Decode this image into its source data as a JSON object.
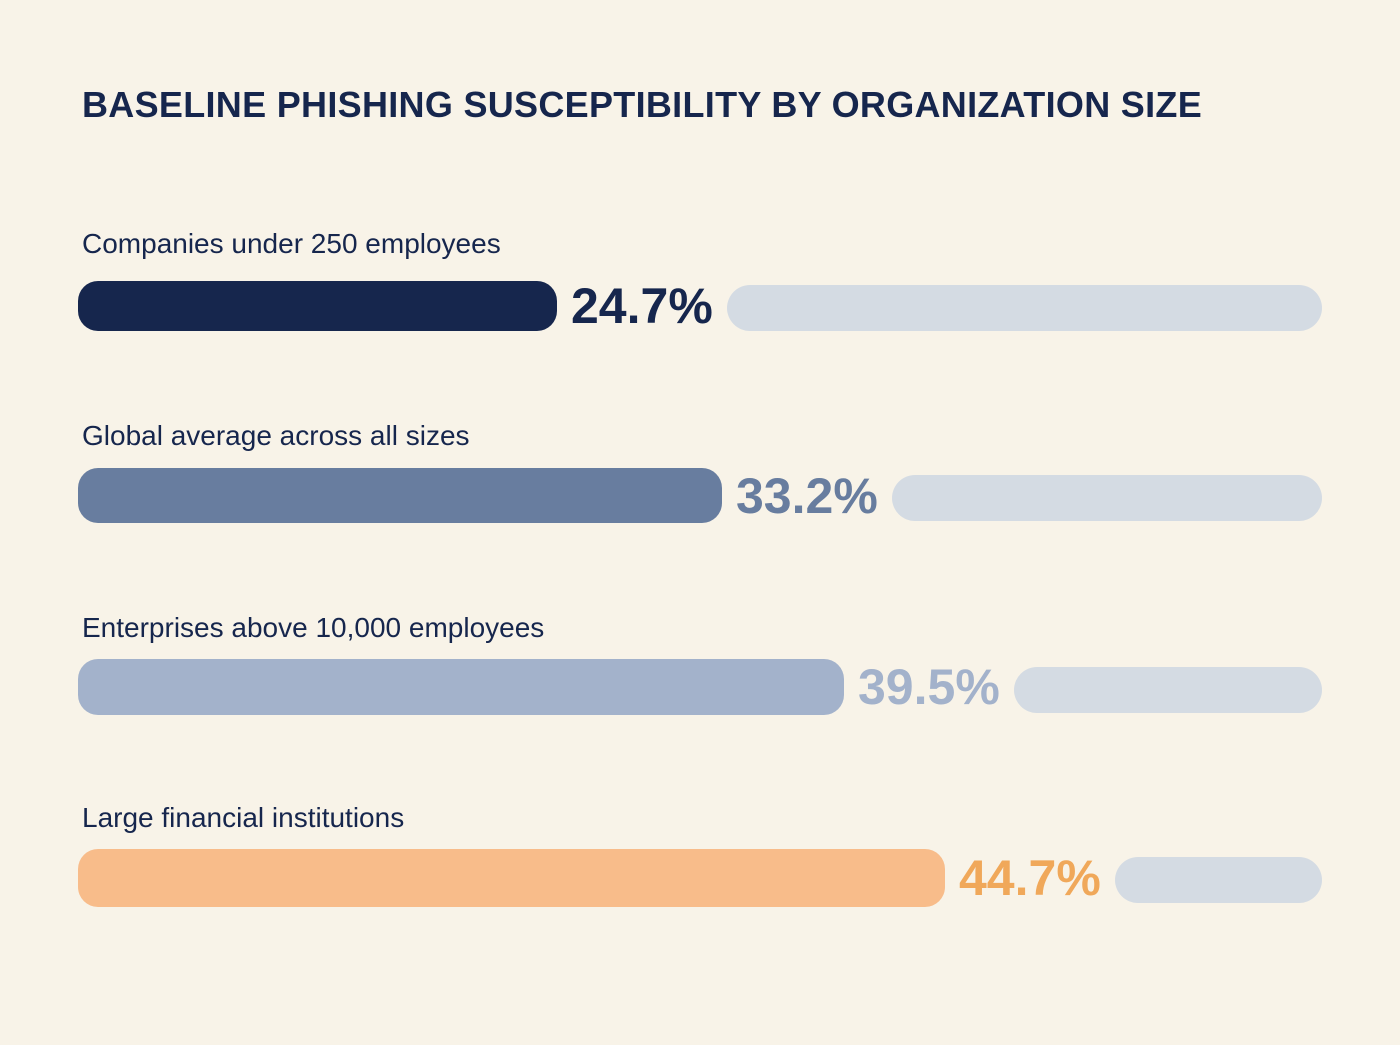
{
  "chart_data": {
    "type": "bar",
    "orientation": "horizontal",
    "title": "BASELINE PHISHING SUSCEPTIBILITY BY ORGANIZATION SIZE",
    "categories": [
      "Companies under 250 employees",
      "Global average across all sizes",
      "Enterprises above 10,000 employees",
      "Large financial institutions"
    ],
    "values": [
      24.7,
      33.2,
      39.5,
      44.7
    ],
    "value_labels": [
      "24.7%",
      "33.2%",
      "39.5%",
      "44.7%"
    ],
    "bar_colors": [
      "#16264d",
      "#687d9f",
      "#a3b2cb",
      "#f8bc8a"
    ],
    "value_label_colors": [
      "#16264d",
      "#687d9f",
      "#a3b2cb",
      "#f0a85a"
    ],
    "track_color": "#d4dbe3",
    "xlim": [
      0,
      70
    ],
    "grid": false,
    "legend": "none"
  }
}
